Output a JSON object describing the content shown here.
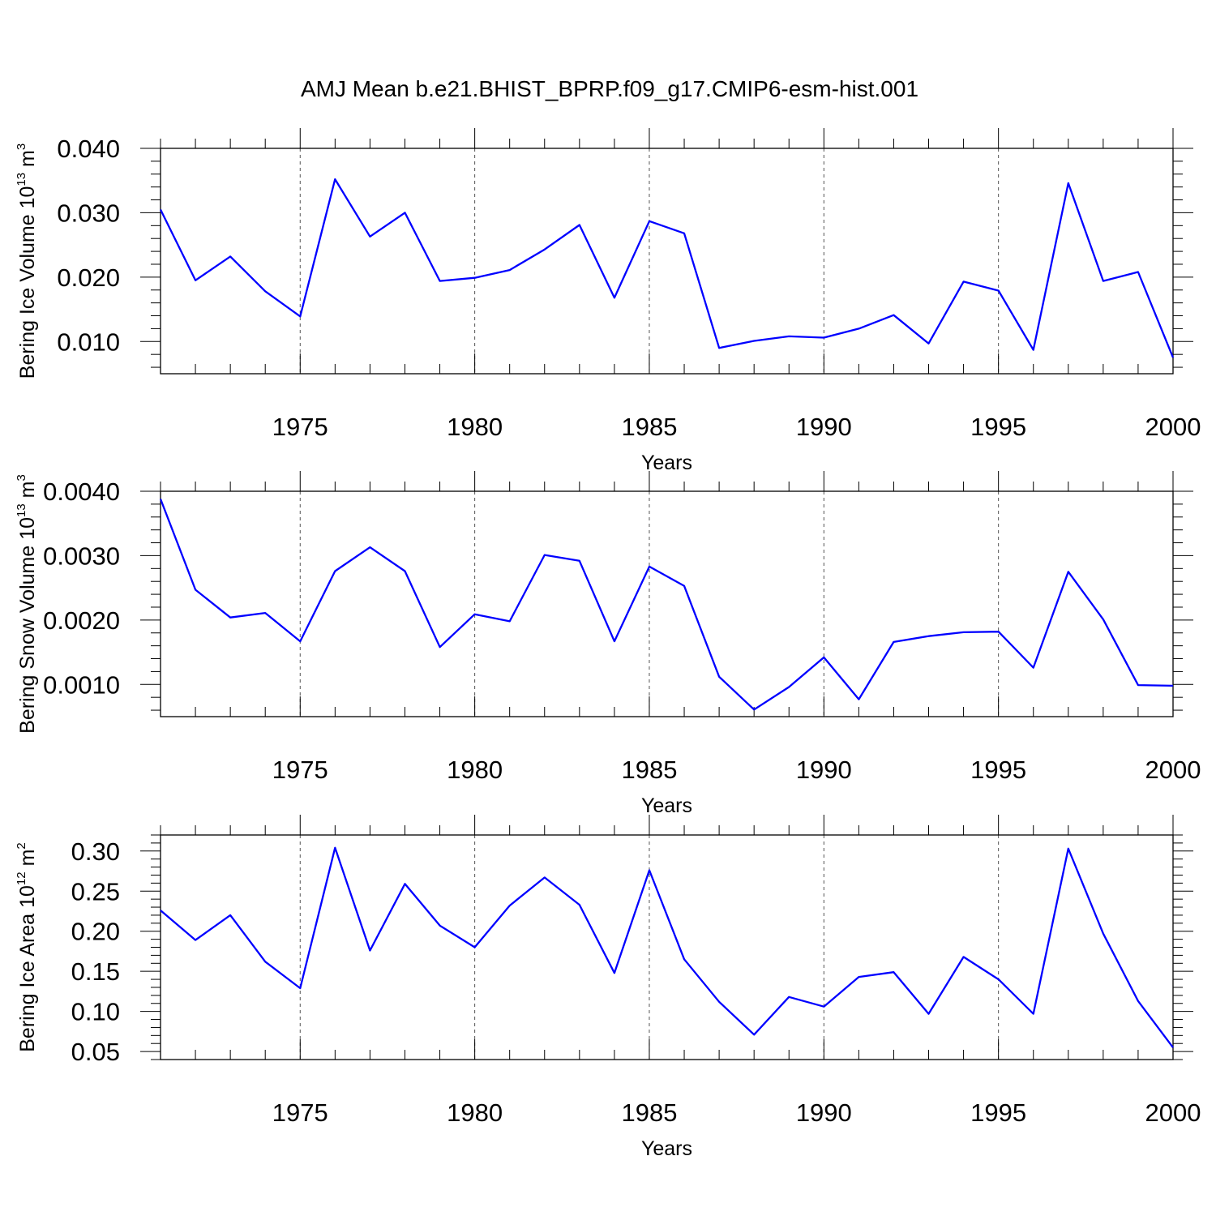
{
  "title": "AMJ Mean b.e21.BHIST_BPRP.f09_g17.CMIP6-esm-hist.001",
  "colors": {
    "line": "#0000ff",
    "axis": "#000000",
    "grid": "#555555"
  },
  "chart_data": [
    {
      "type": "line",
      "xlabel": "Years",
      "ylabel": {
        "base": "Bering Ice Volume 10",
        "exp": "13",
        "unit": " m",
        "unit_exp": "3"
      },
      "xlim": [
        1971,
        2000
      ],
      "ylim": [
        0.005,
        0.04
      ],
      "xticks": [
        1975,
        1980,
        1985,
        1990,
        1995,
        2000
      ],
      "xtick_labels": [
        "1975",
        "1980",
        "1985",
        "1990",
        "1995",
        "2000"
      ],
      "yticks": [
        0.01,
        0.02,
        0.03,
        0.04
      ],
      "ytick_labels": [
        "0.010",
        "0.020",
        "0.030",
        "0.040"
      ],
      "grid": "dashed at major x ticks",
      "series": [
        {
          "name": "Bering Ice Volume",
          "x": [
            1971,
            1972,
            1973,
            1974,
            1975,
            1976,
            1977,
            1978,
            1979,
            1980,
            1981,
            1982,
            1983,
            1984,
            1985,
            1986,
            1987,
            1988,
            1989,
            1990,
            1991,
            1992,
            1993,
            1994,
            1995,
            1996,
            1997,
            1998,
            1999,
            2000
          ],
          "values": [
            0.0305,
            0.0195,
            0.0232,
            0.0178,
            0.0139,
            0.0352,
            0.0263,
            0.03,
            0.0194,
            0.0199,
            0.0211,
            0.0243,
            0.0281,
            0.0168,
            0.0287,
            0.0268,
            0.009,
            0.0101,
            0.0108,
            0.0106,
            0.012,
            0.0141,
            0.0097,
            0.0193,
            0.0179,
            0.0087,
            0.0346,
            0.0194,
            0.0208,
            0.0075
          ]
        }
      ]
    },
    {
      "type": "line",
      "xlabel": "Years",
      "ylabel": {
        "base": "Bering Snow Volume 10",
        "exp": "13",
        "unit": " m",
        "unit_exp": "3"
      },
      "xlim": [
        1971,
        2000
      ],
      "ylim": [
        0.0005,
        0.004
      ],
      "xticks": [
        1975,
        1980,
        1985,
        1990,
        1995,
        2000
      ],
      "xtick_labels": [
        "1975",
        "1980",
        "1985",
        "1990",
        "1995",
        "2000"
      ],
      "yticks": [
        0.001,
        0.002,
        0.003,
        0.004
      ],
      "ytick_labels": [
        "0.0010",
        "0.0020",
        "0.0030",
        "0.0040"
      ],
      "grid": "dashed at major x ticks",
      "series": [
        {
          "name": "Bering Snow Volume",
          "x": [
            1971,
            1972,
            1973,
            1974,
            1975,
            1976,
            1977,
            1978,
            1979,
            1980,
            1981,
            1982,
            1983,
            1984,
            1985,
            1986,
            1987,
            1988,
            1989,
            1990,
            1991,
            1992,
            1993,
            1994,
            1995,
            1996,
            1997,
            1998,
            1999,
            2000
          ],
          "values": [
            0.00388,
            0.00247,
            0.00204,
            0.00211,
            0.00167,
            0.00276,
            0.00313,
            0.00276,
            0.00158,
            0.00209,
            0.00198,
            0.00301,
            0.00292,
            0.00167,
            0.00283,
            0.00253,
            0.00112,
            0.00061,
            0.00096,
            0.00142,
            0.00077,
            0.00166,
            0.00175,
            0.00181,
            0.00182,
            0.00126,
            0.00275,
            0.00201,
            0.00099,
            0.00098
          ]
        }
      ]
    },
    {
      "type": "line",
      "xlabel": "Years",
      "ylabel": {
        "base": "Bering Ice Area 10",
        "exp": "12",
        "unit": " m",
        "unit_exp": "2"
      },
      "xlim": [
        1971,
        2000
      ],
      "ylim": [
        0.04,
        0.32
      ],
      "xticks": [
        1975,
        1980,
        1985,
        1990,
        1995,
        2000
      ],
      "xtick_labels": [
        "1975",
        "1980",
        "1985",
        "1990",
        "1995",
        "2000"
      ],
      "yticks": [
        0.05,
        0.1,
        0.15,
        0.2,
        0.25,
        0.3
      ],
      "ytick_labels": [
        "0.05",
        "0.10",
        "0.15",
        "0.20",
        "0.25",
        "0.30"
      ],
      "grid": "dashed at major x ticks",
      "series": [
        {
          "name": "Bering Ice Area",
          "x": [
            1971,
            1972,
            1973,
            1974,
            1975,
            1976,
            1977,
            1978,
            1979,
            1980,
            1981,
            1982,
            1983,
            1984,
            1985,
            1986,
            1987,
            1988,
            1989,
            1990,
            1991,
            1992,
            1993,
            1994,
            1995,
            1996,
            1997,
            1998,
            1999,
            2000
          ],
          "values": [
            0.226,
            0.189,
            0.22,
            0.162,
            0.129,
            0.304,
            0.176,
            0.259,
            0.207,
            0.18,
            0.232,
            0.267,
            0.233,
            0.148,
            0.276,
            0.165,
            0.112,
            0.071,
            0.118,
            0.106,
            0.143,
            0.149,
            0.097,
            0.168,
            0.14,
            0.097,
            0.303,
            0.197,
            0.113,
            0.055
          ]
        }
      ]
    }
  ]
}
